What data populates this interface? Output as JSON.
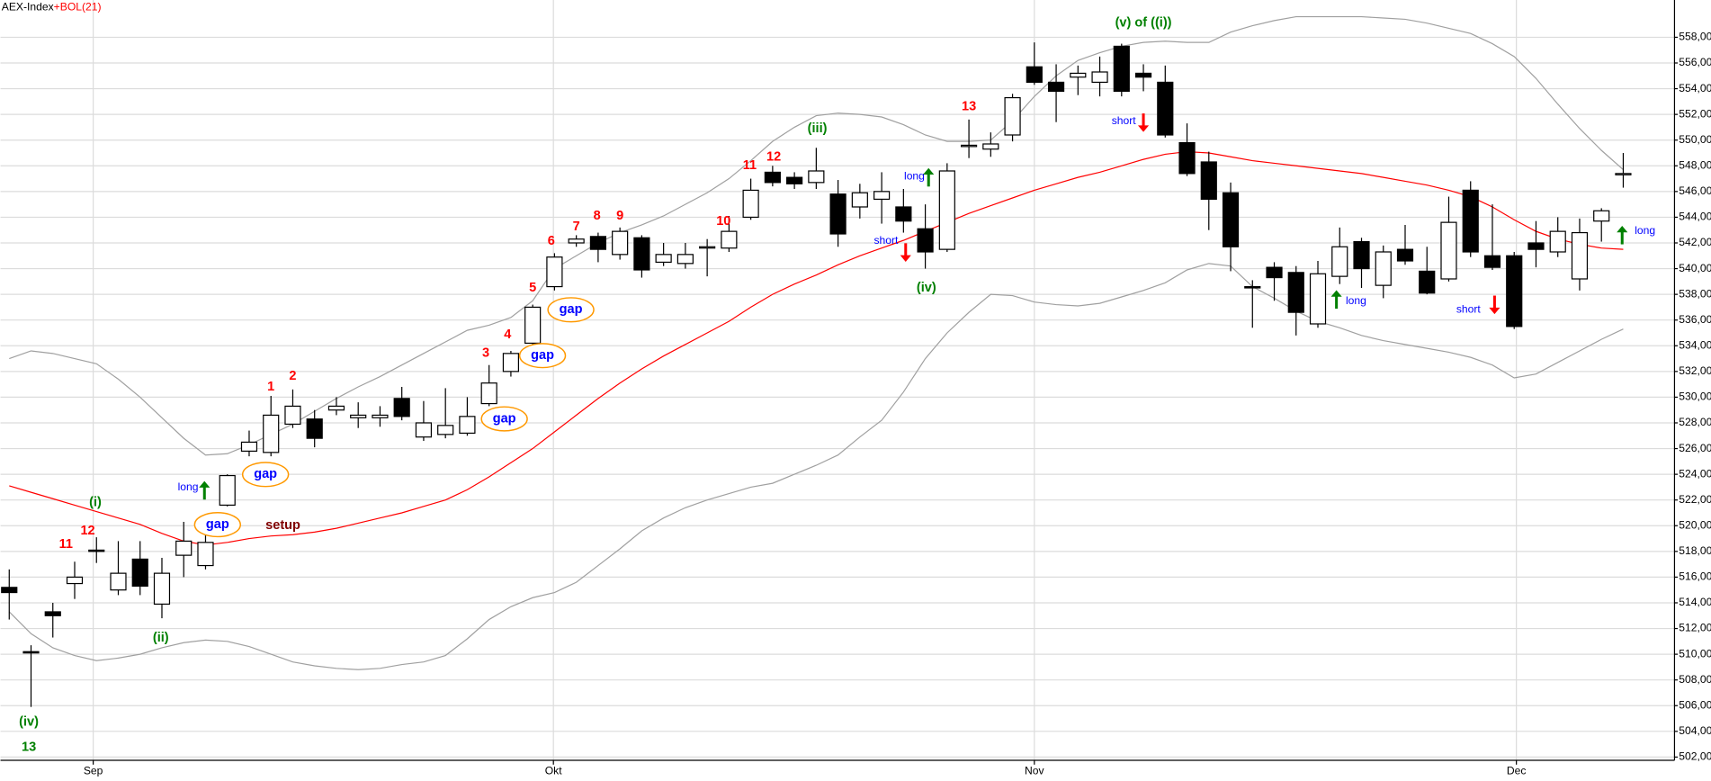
{
  "chart_data": {
    "type": "candlestick",
    "title": "AEX-Index",
    "title_joiner": "+",
    "indicator": "BOL(21)",
    "title_color": "#000000",
    "indicator_color": "#ff0000",
    "up_color": "#ffffff",
    "down_color": "#000000",
    "open": [
      515.2,
      510.2,
      513.3,
      515.5,
      518.1,
      515.0,
      517.4,
      513.9,
      517.7,
      516.9,
      521.6,
      525.8,
      525.7,
      527.9,
      528.3,
      529.0,
      528.4,
      528.4,
      529.9,
      526.9,
      527.1,
      527.2,
      529.5,
      532.0,
      534.2,
      538.6,
      542.0,
      542.5,
      541.1,
      542.4,
      540.5,
      540.4,
      541.6,
      541.6,
      544.0,
      547.5,
      547.1,
      546.7,
      545.8,
      544.8,
      545.4,
      544.8,
      543.1,
      541.5,
      549.5,
      549.3,
      550.4,
      555.7,
      554.5,
      554.9,
      554.5,
      557.3,
      555.2,
      554.5,
      549.8,
      548.3,
      545.9,
      538.6,
      540.1,
      539.7,
      535.7,
      539.4,
      542.1,
      538.7,
      541.5,
      539.8,
      539.2,
      546.1,
      541.0,
      541.0,
      542.0,
      541.3,
      539.2,
      543.7,
      547.3
    ],
    "high": [
      516.6,
      510.7,
      514.0,
      517.2,
      519.1,
      518.8,
      518.8,
      517.5,
      520.3,
      519.6,
      524.0,
      527.4,
      530.1,
      530.6,
      529.0,
      530.0,
      529.6,
      529.3,
      530.8,
      529.7,
      530.7,
      530.0,
      532.5,
      533.6,
      537.2,
      541.2,
      542.6,
      542.8,
      543.2,
      542.6,
      542.0,
      542.0,
      542.3,
      544.1,
      547.0,
      548.0,
      547.5,
      549.4,
      546.9,
      546.6,
      547.5,
      546.2,
      545.0,
      548.2,
      551.6,
      550.6,
      553.6,
      557.6,
      555.9,
      555.8,
      556.5,
      557.5,
      555.9,
      555.8,
      551.3,
      549.1,
      546.7,
      539.1,
      540.5,
      540.2,
      540.6,
      543.2,
      542.4,
      541.8,
      543.4,
      541.7,
      545.6,
      546.8,
      545.0,
      541.3,
      543.7,
      544.0,
      543.9,
      544.7,
      549.0
    ],
    "low": [
      512.7,
      505.9,
      511.3,
      514.3,
      517.1,
      514.6,
      514.6,
      512.8,
      516.0,
      516.6,
      521.5,
      525.4,
      525.4,
      527.6,
      526.1,
      528.6,
      527.6,
      527.7,
      528.2,
      526.6,
      526.8,
      527.0,
      529.3,
      531.6,
      534.0,
      538.3,
      541.7,
      540.5,
      540.7,
      539.3,
      540.2,
      540.0,
      539.4,
      541.3,
      543.8,
      546.4,
      546.2,
      546.2,
      541.7,
      543.9,
      543.5,
      542.8,
      540.0,
      541.3,
      548.6,
      548.7,
      549.9,
      554.3,
      551.4,
      553.5,
      553.4,
      553.4,
      553.8,
      550.2,
      547.2,
      543.0,
      539.8,
      535.4,
      537.5,
      534.8,
      535.4,
      538.8,
      538.5,
      537.7,
      540.3,
      538.0,
      539.0,
      540.9,
      539.9,
      535.3,
      540.1,
      540.9,
      538.3,
      542.1,
      546.3
    ],
    "close": [
      514.8,
      510.1,
      513.0,
      516.0,
      518.0,
      516.3,
      515.3,
      516.3,
      518.8,
      518.7,
      523.9,
      526.5,
      528.6,
      529.3,
      526.8,
      529.3,
      528.6,
      528.6,
      528.5,
      528.0,
      527.8,
      528.5,
      531.1,
      533.4,
      537.0,
      540.9,
      542.3,
      541.5,
      542.9,
      539.9,
      541.1,
      541.1,
      541.7,
      542.9,
      546.1,
      546.7,
      546.6,
      547.6,
      542.7,
      545.9,
      546.0,
      543.7,
      541.3,
      547.6,
      549.6,
      549.7,
      553.3,
      554.5,
      553.8,
      555.2,
      555.3,
      553.8,
      554.9,
      550.4,
      547.4,
      545.4,
      541.7,
      538.5,
      539.3,
      536.6,
      539.6,
      541.7,
      540.0,
      541.3,
      540.6,
      538.1,
      543.6,
      541.3,
      540.1,
      535.5,
      541.5,
      542.9,
      542.8,
      544.5,
      547.4
    ],
    "lines": [
      {
        "color": "#a0a0a0",
        "values": [
          533.0,
          533.6,
          533.4,
          533.0,
          532.6,
          531.4,
          530.0,
          528.4,
          526.8,
          525.5,
          525.6,
          526.3,
          527.1,
          527.9,
          528.9,
          529.9,
          530.8,
          531.6,
          532.5,
          533.4,
          534.3,
          535.2,
          535.6,
          536.2,
          537.5,
          540.0,
          541.0,
          542.0,
          542.8,
          543.4,
          544.1,
          545.0,
          545.9,
          547.0,
          548.4,
          549.9,
          551.0,
          551.9,
          552.1,
          552.0,
          551.8,
          551.2,
          550.4,
          549.9,
          549.9,
          550.0,
          551.5,
          553.4,
          555.0,
          556.2,
          556.8,
          557.3,
          557.6,
          557.7,
          557.6,
          557.6,
          558.4,
          558.9,
          559.3,
          559.6,
          559.6,
          559.6,
          559.6,
          559.5,
          559.4,
          559.1,
          558.7,
          558.3,
          557.5,
          556.5,
          554.8,
          552.8,
          550.9,
          549.2,
          547.7
        ]
      },
      {
        "color": "#ff0000",
        "values": [
          523.1,
          522.6,
          522.1,
          521.6,
          521.1,
          520.6,
          520.1,
          519.4,
          518.8,
          518.5,
          518.7,
          519.0,
          519.2,
          519.3,
          519.5,
          519.8,
          520.2,
          520.6,
          521.0,
          521.5,
          522.0,
          522.8,
          523.8,
          524.9,
          526.0,
          527.3,
          528.6,
          529.9,
          531.1,
          532.2,
          533.2,
          534.1,
          535.0,
          535.9,
          537.0,
          538.0,
          538.8,
          539.5,
          540.3,
          541.0,
          541.6,
          542.2,
          542.9,
          543.6,
          544.3,
          544.9,
          545.5,
          546.1,
          546.6,
          547.1,
          547.5,
          548.0,
          548.5,
          548.9,
          549.1,
          549.0,
          548.7,
          548.4,
          548.2,
          548.0,
          547.8,
          547.6,
          547.4,
          547.1,
          546.8,
          546.5,
          546.1,
          545.6,
          544.8,
          543.8,
          542.9,
          542.3,
          541.9,
          541.6,
          541.5
        ]
      },
      {
        "color": "#a0a0a0",
        "values": [
          513.3,
          511.6,
          510.5,
          509.9,
          509.5,
          509.7,
          510.0,
          510.5,
          510.9,
          511.1,
          511.0,
          510.6,
          510.0,
          509.4,
          509.1,
          508.9,
          508.8,
          508.9,
          509.2,
          509.4,
          509.9,
          511.2,
          512.7,
          513.7,
          514.4,
          514.8,
          515.6,
          516.9,
          518.2,
          519.6,
          520.6,
          521.4,
          522.0,
          522.5,
          523.0,
          523.3,
          524.0,
          524.7,
          525.5,
          526.9,
          528.2,
          530.4,
          533.0,
          535.0,
          536.6,
          538.0,
          537.9,
          537.4,
          537.2,
          537.1,
          537.3,
          537.8,
          538.3,
          538.9,
          539.9,
          540.4,
          540.2,
          538.6,
          537.7,
          536.7,
          535.9,
          535.4,
          534.8,
          534.4,
          534.1,
          533.8,
          533.5,
          533.1,
          532.5,
          531.5,
          531.8,
          532.7,
          533.6,
          534.5,
          535.3
        ]
      }
    ],
    "ylim": [
      501.75,
      560.9
    ],
    "yticks": [
      {
        "value": 502,
        "label": "502,00"
      },
      {
        "value": 504,
        "label": "504,00"
      },
      {
        "value": 506,
        "label": "506,00"
      },
      {
        "value": 508,
        "label": "508,00"
      },
      {
        "value": 510,
        "label": "510,00"
      },
      {
        "value": 512,
        "label": "512,00"
      },
      {
        "value": 514,
        "label": "514,00"
      },
      {
        "value": 516,
        "label": "516,00"
      },
      {
        "value": 518,
        "label": "518,00"
      },
      {
        "value": 520,
        "label": "520,00"
      },
      {
        "value": 522,
        "label": "522,00"
      },
      {
        "value": 524,
        "label": "524,00"
      },
      {
        "value": 526,
        "label": "526,00"
      },
      {
        "value": 528,
        "label": "528,00"
      },
      {
        "value": 530,
        "label": "530,00"
      },
      {
        "value": 532,
        "label": "532,00"
      },
      {
        "value": 534,
        "label": "534,00"
      },
      {
        "value": 536,
        "label": "536,00"
      },
      {
        "value": 538,
        "label": "538,00"
      },
      {
        "value": 540,
        "label": "540,00"
      },
      {
        "value": 542,
        "label": "542,00"
      },
      {
        "value": 544,
        "label": "544,00"
      },
      {
        "value": 546,
        "label": "546,00"
      },
      {
        "value": 548,
        "label": "548,00"
      },
      {
        "value": 550,
        "label": "550,00"
      },
      {
        "value": 552,
        "label": "552,00"
      },
      {
        "value": 554,
        "label": "554,00"
      },
      {
        "value": 556,
        "label": "556,00"
      },
      {
        "value": 558,
        "label": "558,00"
      }
    ],
    "xticks": [
      {
        "value": 3.85,
        "label": "Sep"
      },
      {
        "value": 24.95,
        "label": "Okt"
      },
      {
        "value": 47,
        "label": "Nov"
      },
      {
        "value": 69.1,
        "label": "Dec"
      }
    ],
    "grid": true,
    "annotations": [
      {
        "text": "(iv)",
        "color": "#008000"
      },
      {
        "text": "13",
        "color": "#008000"
      },
      {
        "text": "11",
        "color": "#ff0000"
      },
      {
        "text": "12",
        "color": "#ff0000"
      },
      {
        "text": "(i)",
        "color": "#008000"
      },
      {
        "text": "(ii)",
        "color": "#008000"
      },
      {
        "text": "long",
        "color": "#0000ff"
      },
      {
        "text": "gap",
        "color": "#0000ff"
      },
      {
        "text": "setup",
        "color": "#800000"
      },
      {
        "text": "gap",
        "color": "#0000ff"
      },
      {
        "text": "1",
        "color": "#ff0000"
      },
      {
        "text": "2",
        "color": "#ff0000"
      },
      {
        "text": "gap",
        "color": "#0000ff"
      },
      {
        "text": "3",
        "color": "#ff0000"
      },
      {
        "text": "4",
        "color": "#ff0000"
      },
      {
        "text": "gap",
        "color": "#0000ff"
      },
      {
        "text": "5",
        "color": "#ff0000"
      },
      {
        "text": "gap",
        "color": "#0000ff"
      },
      {
        "text": "6",
        "color": "#ff0000"
      },
      {
        "text": "7",
        "color": "#ff0000"
      },
      {
        "text": "8",
        "color": "#ff0000"
      },
      {
        "text": "9",
        "color": "#ff0000"
      },
      {
        "text": "10",
        "color": "#ff0000"
      },
      {
        "text": "11",
        "color": "#ff0000"
      },
      {
        "text": "12",
        "color": "#ff0000"
      },
      {
        "text": "(iii)",
        "color": "#008000"
      },
      {
        "text": "long",
        "color": "#0000ff"
      },
      {
        "text": "short",
        "color": "#0000ff"
      },
      {
        "text": "(iv)",
        "color": "#008000"
      },
      {
        "text": "13",
        "color": "#ff0000"
      },
      {
        "text": "(v) of ((i))",
        "color": "#008000"
      },
      {
        "text": "short",
        "color": "#0000ff"
      },
      {
        "text": "long",
        "color": "#0000ff"
      },
      {
        "text": "short",
        "color": "#0000ff"
      },
      {
        "text": "long",
        "color": "#0000ff"
      }
    ]
  }
}
